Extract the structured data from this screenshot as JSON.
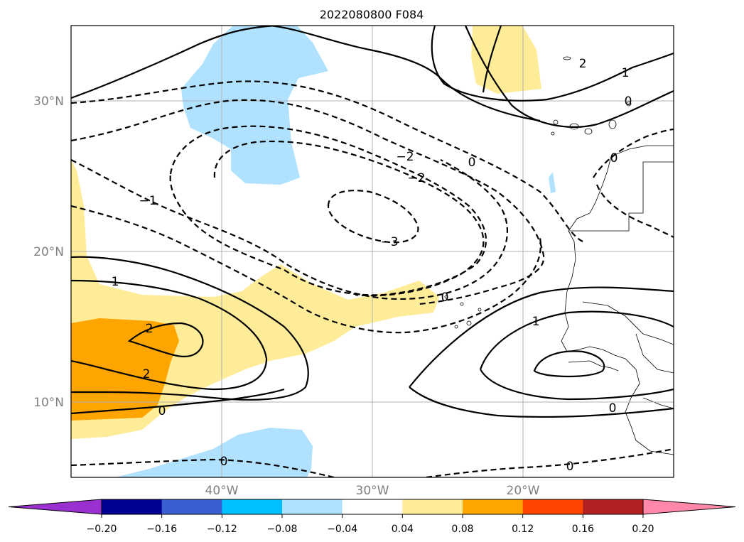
{
  "title": "2022080800 F084",
  "lat_labels": [
    "30°N",
    "20°N",
    "10°N"
  ],
  "lon_labels": [
    "40°W",
    "30°W",
    "20°W"
  ],
  "grid": true,
  "colorbar": {
    "orientation": "horizontal",
    "extend": "both",
    "ticks": [
      "−0.20",
      "−0.16",
      "−0.12",
      "−0.08",
      "−0.04",
      "0.04",
      "0.08",
      "0.12",
      "0.16",
      "0.20"
    ],
    "colors": [
      "#9b30d0",
      "#000090",
      "#3a5fd0",
      "#00bfff",
      "#b0e2ff",
      "#ffffff",
      "#ffec99",
      "#ffa500",
      "#ff4500",
      "#b22222",
      "#ff88aa"
    ]
  },
  "shading": {
    "positive_weak": "#ffec99",
    "positive_strong": "#ffa500",
    "negative_weak": "#b0e2ff"
  },
  "contour_labels": [
    "2",
    "1",
    "0",
    "0",
    "−2",
    "−2",
    "0",
    "−1",
    "−3",
    "1",
    "2",
    "2",
    "0",
    "1",
    "0",
    "0",
    "0",
    "0"
  ]
}
